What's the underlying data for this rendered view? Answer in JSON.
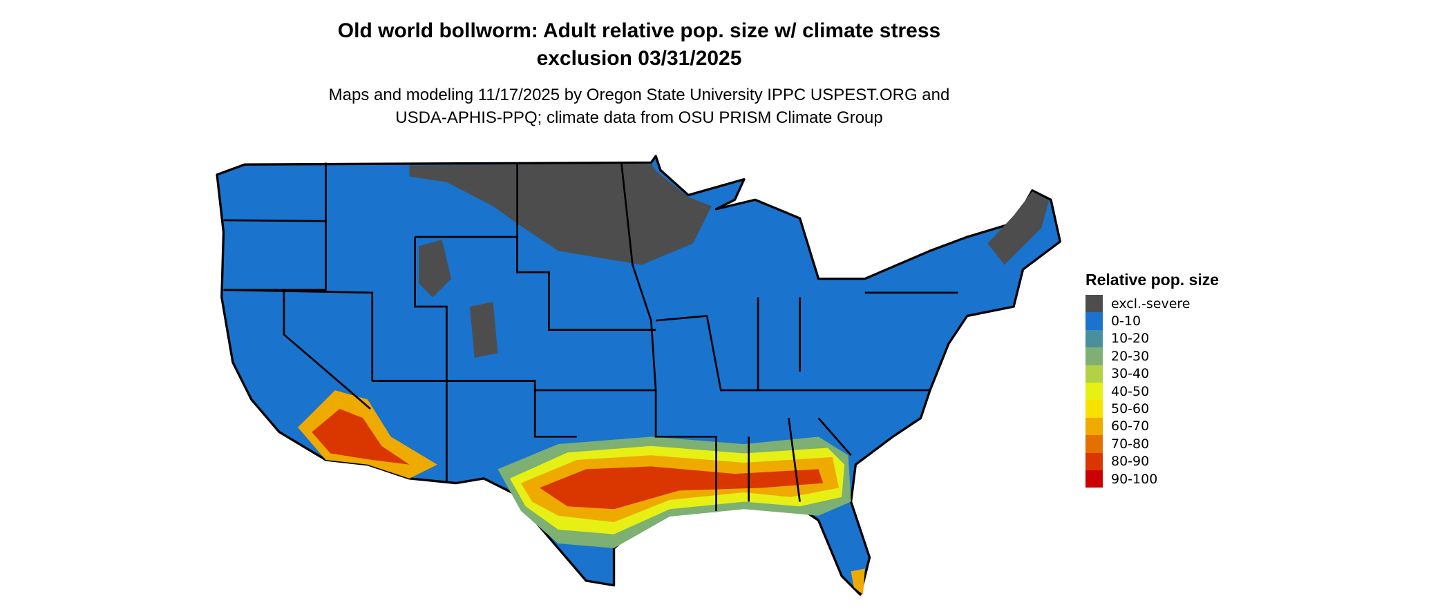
{
  "title": {
    "line1": "Old world bollworm: Adult relative pop. size w/ climate stress",
    "line2": "exclusion 03/31/2025"
  },
  "subtitle": {
    "line1": "Maps and modeling 11/17/2025 by Oregon State University IPPC USPEST.ORG and",
    "line2": "USDA-APHIS-PPQ; climate data from OSU PRISM Climate Group"
  },
  "legend": {
    "title": "Relative pop. size",
    "items": [
      {
        "label": "excl.-severe",
        "color": "#4d4d4d"
      },
      {
        "label": "0-10",
        "color": "#1a73cc"
      },
      {
        "label": "10-20",
        "color": "#4a8f9e"
      },
      {
        "label": "20-30",
        "color": "#7db072"
      },
      {
        "label": "30-40",
        "color": "#b3d144"
      },
      {
        "label": "40-50",
        "color": "#e6f014"
      },
      {
        "label": "50-60",
        "color": "#f7e100"
      },
      {
        "label": "60-70",
        "color": "#efaa00"
      },
      {
        "label": "70-80",
        "color": "#e37000"
      },
      {
        "label": "80-90",
        "color": "#d93600"
      },
      {
        "label": "90-100",
        "color": "#cc0000"
      }
    ]
  }
}
